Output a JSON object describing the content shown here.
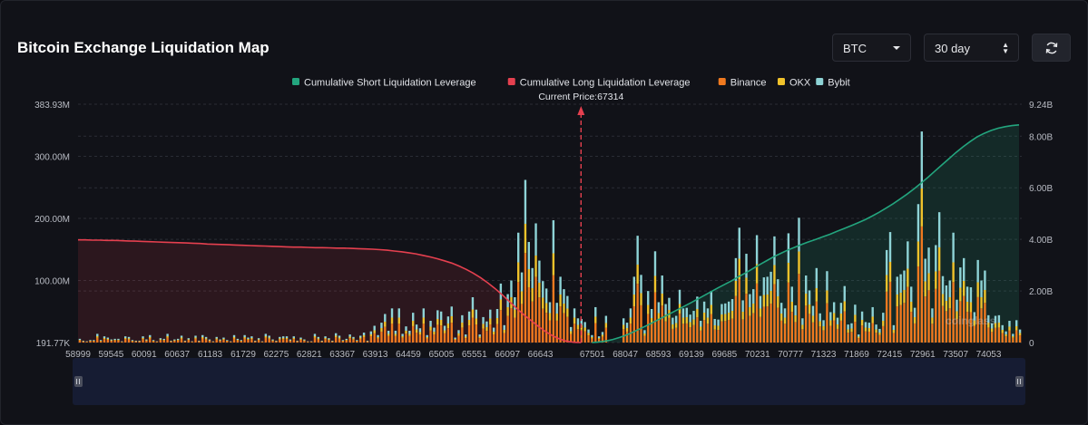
{
  "header": {
    "title": "Bitcoin Exchange Liquidation Map",
    "coin_select": "BTC",
    "range_select": "30 day"
  },
  "colors": {
    "short_cum": "#23a57e",
    "long_cum": "#e5404f",
    "binance": "#f0791f",
    "okx": "#f0c22b",
    "bybit": "#8ed3d6"
  },
  "watermark": "coinglass",
  "chart_data": {
    "type": "bar",
    "title": "Bitcoin Exchange Liquidation Map",
    "current_price_label": "Current Price:67314",
    "current_price": 67314,
    "legend": [
      {
        "name": "Cumulative Short Liquidation Leverage",
        "color": "#23a57e",
        "kind": "line"
      },
      {
        "name": "Cumulative Long Liquidation Leverage",
        "color": "#e5404f",
        "kind": "line"
      },
      {
        "name": "Binance",
        "color": "#f0791f",
        "kind": "bar"
      },
      {
        "name": "OKX",
        "color": "#f0c22b",
        "kind": "bar"
      },
      {
        "name": "Bybit",
        "color": "#8ed3d6",
        "kind": "bar"
      }
    ],
    "x_tick_labels": [
      "58999",
      "59545",
      "60091",
      "60637",
      "61183",
      "61729",
      "62275",
      "62821",
      "63367",
      "63913",
      "64459",
      "65005",
      "65551",
      "66097",
      "66643",
      "67501",
      "68047",
      "68593",
      "69139",
      "69685",
      "70231",
      "70777",
      "71323",
      "71869",
      "72415",
      "72961",
      "73507",
      "74053"
    ],
    "x_range": [
      58999,
      74600
    ],
    "y_left_labels": [
      "191.77K",
      "100.00M",
      "200.00M",
      "300.00M",
      "383.93M"
    ],
    "y_left_values": [
      0,
      100,
      200,
      300,
      383.93
    ],
    "y_left_unit": "M",
    "y_right_labels": [
      "0",
      "2.00B",
      "4.00B",
      "6.00B",
      "8.00B",
      "9.24B"
    ],
    "y_right_values": [
      0,
      2,
      4,
      6,
      8,
      9.24
    ],
    "y_right_unit": "B",
    "bar_totals_M": [
      6,
      3,
      2,
      4,
      4,
      14,
      4,
      10,
      8,
      5,
      6,
      6,
      2,
      10,
      9,
      4,
      3,
      3,
      10,
      5,
      12,
      4,
      2,
      7,
      6,
      14,
      3,
      5,
      6,
      11,
      3,
      7,
      2,
      11,
      3,
      12,
      9,
      5,
      2,
      9,
      5,
      8,
      4,
      2,
      12,
      6,
      4,
      12,
      8,
      10,
      3,
      7,
      2,
      14,
      11,
      5,
      3,
      9,
      10,
      10,
      5,
      10,
      3,
      8,
      5,
      2,
      2,
      14,
      9,
      3,
      10,
      7,
      3,
      15,
      11,
      4,
      6,
      13,
      9,
      4,
      11,
      16,
      3,
      18,
      27,
      12,
      32,
      46,
      19,
      55,
      19,
      55,
      14,
      26,
      19,
      48,
      29,
      23,
      55,
      12,
      35,
      24,
      52,
      50,
      27,
      42,
      58,
      8,
      20,
      44,
      13,
      50,
      73,
      53,
      13,
      41,
      34,
      53,
      24,
      54,
      95,
      28,
      78,
      100,
      73,
      177,
      113,
      262,
      162,
      120,
      192,
      132,
      99,
      87,
      65,
      197,
      64,
      106,
      86,
      75,
      25,
      55,
      39,
      38,
      33,
      21,
      12,
      57,
      10,
      17,
      43,
      0,
      0,
      0,
      0,
      39,
      32,
      55,
      106,
      172,
      109,
      20,
      83,
      54,
      147,
      65,
      108,
      62,
      72,
      40,
      43,
      85,
      55,
      56,
      45,
      51,
      74,
      35,
      66,
      55,
      83,
      38,
      37,
      62,
      63,
      66,
      70,
      136,
      185,
      68,
      143,
      78,
      86,
      173,
      75,
      105,
      106,
      114,
      171,
      102,
      64,
      55,
      176,
      90,
      60,
      201,
      39,
      108,
      84,
      59,
      120,
      47,
      36,
      115,
      49,
      65,
      40,
      64,
      91,
      29,
      31,
      61,
      13,
      50,
      33,
      32,
      57,
      29,
      22,
      48,
      149,
      178,
      28,
      106,
      110,
      116,
      163,
      90,
      56,
      223,
      340,
      135,
      153,
      55,
      157,
      210,
      107,
      92,
      100,
      177,
      69,
      121,
      136,
      90,
      89,
      49,
      133,
      100,
      116,
      44,
      31,
      43,
      44,
      28,
      18,
      35,
      14,
      36,
      21
    ],
    "long_cum_B": [
      3.98,
      3.98,
      3.97,
      3.97,
      3.96,
      3.96,
      3.95,
      3.94,
      3.93,
      3.92,
      3.91,
      3.9,
      3.89,
      3.88,
      3.87,
      3.86,
      3.85,
      3.84,
      3.82,
      3.81,
      3.8,
      3.79,
      3.78,
      3.77,
      3.76,
      3.75,
      3.74,
      3.73,
      3.72,
      3.71,
      3.7,
      3.7,
      3.69,
      3.68,
      3.68,
      3.67,
      3.66,
      3.66,
      3.65,
      3.64,
      3.63,
      3.62,
      3.6,
      3.58,
      3.55,
      3.52,
      3.48,
      3.44,
      3.38,
      3.32,
      3.25,
      3.17,
      3.08,
      2.97,
      2.84,
      2.69,
      2.52,
      2.32,
      2.1,
      1.86,
      1.6,
      1.34,
      1.09,
      0.86,
      0.64,
      0.44,
      0.27,
      0.14,
      0.05,
      0.01,
      0.0
    ],
    "short_cum_B": [
      0.0,
      0.02,
      0.06,
      0.12,
      0.2,
      0.3,
      0.42,
      0.55,
      0.68,
      0.82,
      0.96,
      1.1,
      1.24,
      1.38,
      1.52,
      1.67,
      1.82,
      1.97,
      2.12,
      2.26,
      2.4,
      2.56,
      2.71,
      2.87,
      3.03,
      3.18,
      3.33,
      3.46,
      3.59,
      3.7,
      3.81,
      3.91,
      4.0,
      4.1,
      4.2,
      4.31,
      4.42,
      4.53,
      4.64,
      4.76,
      4.9,
      5.05,
      5.21,
      5.38,
      5.56,
      5.75,
      5.96,
      6.18,
      6.41,
      6.65,
      6.89,
      7.13,
      7.37,
      7.59,
      7.79,
      7.97,
      8.11,
      8.22,
      8.31,
      8.37,
      8.41,
      8.44
    ]
  }
}
